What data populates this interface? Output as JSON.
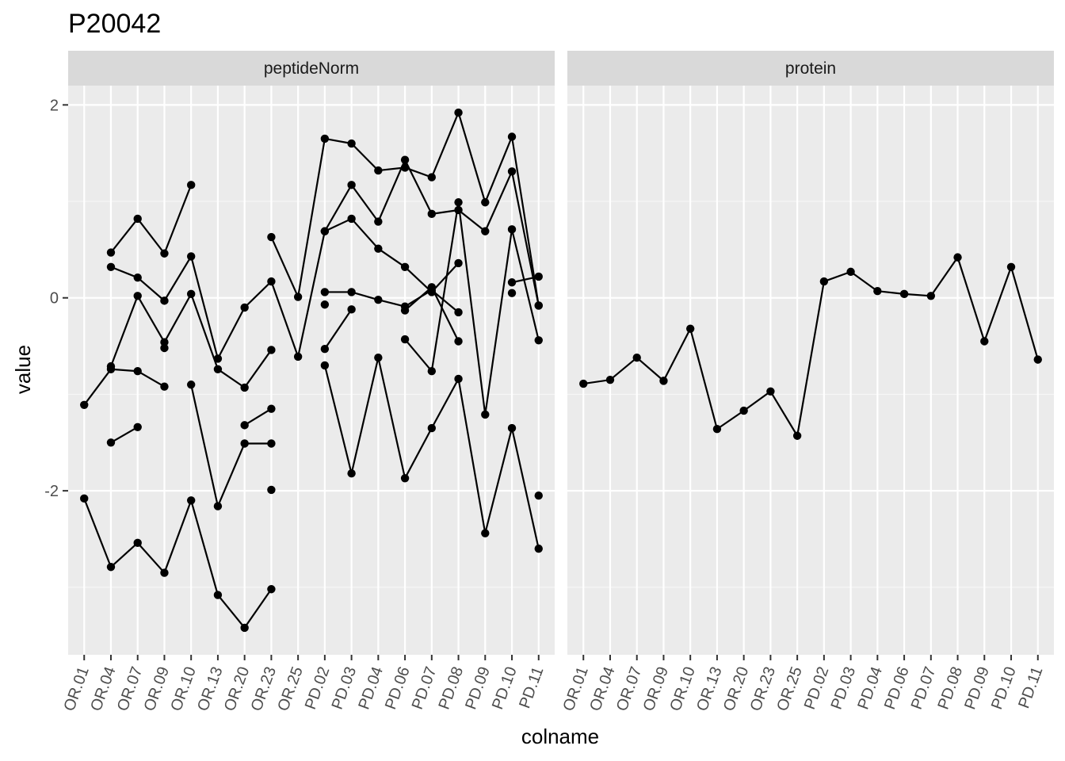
{
  "chart_data": {
    "type": "line",
    "title": "P20042",
    "xlabel": "colname",
    "ylabel": "value",
    "ylim": [
      -3.7,
      2.2
    ],
    "y_ticks": [
      2,
      0,
      -2
    ],
    "y_tick_labels": [
      "2",
      "0",
      "-2"
    ],
    "grid": true,
    "categories": [
      "OR.01",
      "OR.04",
      "OR.07",
      "OR.09",
      "OR.10",
      "OR.13",
      "OR.20",
      "OR.23",
      "OR.25",
      "PD.02",
      "PD.03",
      "PD.04",
      "PD.06",
      "PD.07",
      "PD.08",
      "PD.09",
      "PD.10",
      "PD.11"
    ],
    "panels": [
      {
        "label": "peptideNorm",
        "series": [
          {
            "values": [
              null,
              0.47,
              0.82,
              0.46,
              1.17,
              null,
              null,
              null,
              null,
              0.06,
              0.06,
              -0.02,
              -0.09,
              0.08,
              -0.15,
              null,
              null,
              null
            ]
          },
          {
            "values": [
              null,
              0.32,
              0.21,
              -0.03,
              0.43,
              -0.63,
              -0.1,
              0.17,
              -0.61,
              0.69,
              1.17,
              0.79,
              1.43,
              0.87,
              0.91,
              0.69,
              1.31,
              -0.08
            ]
          },
          {
            "values": [
              null,
              -0.71,
              0.02,
              -0.46,
              0.04,
              -0.74,
              -0.93,
              -0.54,
              null,
              -0.53,
              -0.12,
              null,
              -0.13,
              0.11,
              -0.45,
              null,
              0.16,
              0.22
            ]
          },
          {
            "values": [
              -1.11,
              -0.74,
              -0.76,
              -0.92,
              null,
              null,
              null,
              null,
              null,
              0.69,
              0.82,
              0.51,
              0.32,
              0.06,
              0.36,
              null,
              0.05,
              null
            ]
          },
          {
            "values": [
              null,
              -1.5,
              -1.34,
              null,
              -0.9,
              -2.16,
              -1.51,
              -1.51,
              null,
              null,
              null,
              null,
              null,
              null,
              null,
              null,
              null,
              null
            ]
          },
          {
            "values": [
              -2.08,
              -2.79,
              -2.54,
              -2.85,
              -2.1,
              -3.08,
              -3.42,
              -3.02,
              null,
              null,
              null,
              null,
              null,
              null,
              null,
              null,
              null,
              null
            ]
          },
          {
            "values": [
              null,
              null,
              null,
              -0.52,
              null,
              null,
              -1.32,
              -1.15,
              null,
              null,
              null,
              null,
              null,
              null,
              null,
              null,
              null,
              null
            ]
          },
          {
            "values": [
              null,
              null,
              null,
              null,
              null,
              null,
              null,
              0.63,
              0.01,
              1.65,
              1.6,
              1.32,
              1.35,
              1.25,
              1.92,
              0.99,
              1.67,
              -0.08
            ]
          },
          {
            "values": [
              null,
              null,
              null,
              null,
              null,
              null,
              null,
              null,
              null,
              -0.7,
              -1.82,
              -0.62,
              -1.87,
              -1.35,
              -0.84,
              -2.44,
              -1.35,
              -2.6
            ]
          },
          {
            "values": [
              null,
              null,
              null,
              null,
              null,
              null,
              null,
              null,
              null,
              null,
              null,
              null,
              -0.43,
              -0.76,
              0.99,
              -1.21,
              0.71,
              -0.44
            ]
          },
          {
            "values": [
              null,
              null,
              null,
              null,
              null,
              null,
              null,
              -1.99,
              null,
              -0.07,
              null,
              null,
              null,
              null,
              null,
              null,
              null,
              -2.05
            ]
          }
        ]
      },
      {
        "label": "protein",
        "series": [
          {
            "values": [
              -0.89,
              -0.85,
              -0.62,
              -0.86,
              -0.32,
              -1.36,
              -1.17,
              -0.97,
              -1.43,
              0.17,
              0.27,
              0.07,
              0.04,
              0.02,
              0.42,
              -0.45,
              0.32,
              -0.64
            ]
          }
        ]
      }
    ]
  },
  "colors": {
    "panel_background": "#ebebeb",
    "strip_background": "#d9d9d9",
    "grid_major": "#ffffff",
    "line": "#000000",
    "tick_text": "#4d4d4d"
  }
}
